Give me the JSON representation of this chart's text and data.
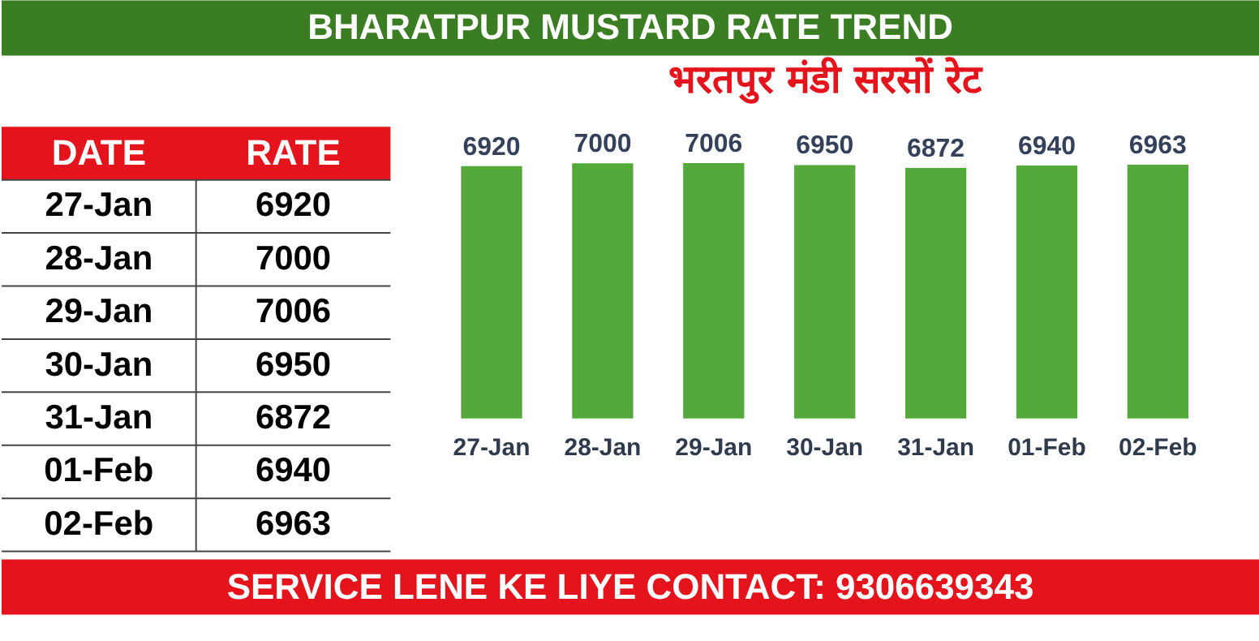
{
  "chart_data": [
    {
      "type": "other",
      "categories": [
        "27-Jan",
        "28-Jan",
        "29-Jan",
        "30-Jan",
        "31-Jan",
        "01-Feb",
        "02-Feb"
      ],
      "values": [
        6920,
        7000,
        7006,
        6950,
        6872,
        6940,
        6963
      ],
      "data_labels": true,
      "annotations": [
        "DATE",
        "RATE"
      ]
    },
    {
      "type": "bar",
      "title": "BHARATPUR MUSTARD RATE TREND",
      "subtitle": "भरतपुर मंडी सरसों रेट",
      "categories": [
        "27-Jan",
        "28-Jan",
        "29-Jan",
        "30-Jan",
        "31-Jan",
        "01-Feb",
        "02-Feb"
      ],
      "values": [
        6920,
        7000,
        7006,
        6950,
        6872,
        6940,
        6963
      ],
      "color": "#55a83a",
      "data_labels": true,
      "annotations": [
        "SERVICE LENE KE LIYE CONTACT: 9306639343"
      ]
    }
  ]
}
